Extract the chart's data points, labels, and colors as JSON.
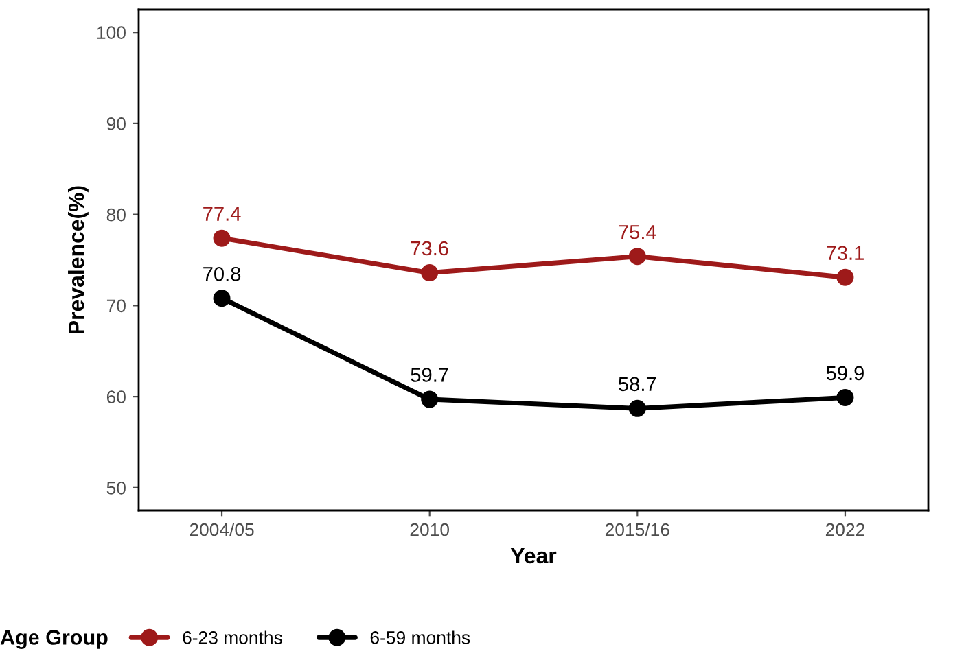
{
  "chart_data": {
    "type": "line",
    "xlabel": "Year",
    "ylabel": "Prevalence(%)",
    "legend_title": "Age Group",
    "categories": [
      "2004/05",
      "2010",
      "2015/16",
      "2022"
    ],
    "series": [
      {
        "name": "6-23 months",
        "color": "#9e1a1a",
        "values": [
          77.4,
          73.6,
          75.4,
          73.1
        ]
      },
      {
        "name": "6-59 months",
        "color": "#000000",
        "values": [
          70.8,
          59.7,
          58.7,
          59.9
        ]
      }
    ],
    "ylim": [
      47.5,
      102.5
    ],
    "yticks": [
      50,
      60,
      70,
      80,
      90,
      100
    ],
    "grid": false,
    "legend": "bottom",
    "marker": "circle",
    "line_style": "solid",
    "data_labels": true
  }
}
